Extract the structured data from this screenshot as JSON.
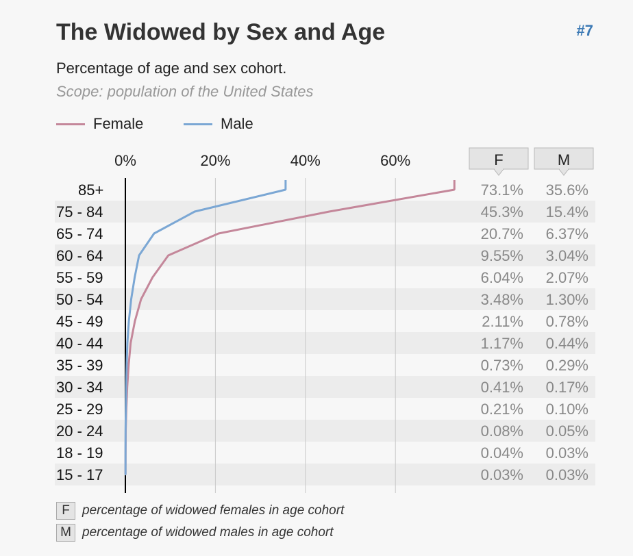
{
  "header": {
    "title": "The Widowed by Sex and Age",
    "chart_number": "#7",
    "subtitle": "Percentage of age and sex cohort.",
    "scope": "Scope: population of the United States"
  },
  "colors": {
    "female": "#c4879a",
    "male": "#7ba7d4",
    "accent": "#3d7ab5",
    "stripe": "#ececec",
    "grid": "#c8c8c8",
    "value_text": "#888888"
  },
  "legend": {
    "female_label": "Female",
    "male_label": "Male"
  },
  "column_headers": {
    "female": "F",
    "male": "M"
  },
  "footnotes": {
    "female_key": "F",
    "female_text": "percentage of widowed females in age cohort",
    "male_key": "M",
    "male_text": "percentage of widowed males in age cohort"
  },
  "chart_data": {
    "type": "line",
    "orientation": "horizontal",
    "title": "The Widowed by Sex and Age",
    "subtitle": "Percentage of age and sex cohort.",
    "x_ticks": [
      "0%",
      "20%",
      "40%",
      "60%"
    ],
    "x_tick_values": [
      0,
      20,
      40,
      60
    ],
    "xlim": [
      0,
      75
    ],
    "grid": true,
    "legend_position": "top-left",
    "categories": [
      "85+",
      "75 - 84",
      "65 - 74",
      "60 - 64",
      "55 - 59",
      "50 - 54",
      "45 - 49",
      "40 - 44",
      "35 - 39",
      "30 - 34",
      "25 - 29",
      "20 - 24",
      "18 - 19",
      "15 - 17"
    ],
    "series": [
      {
        "name": "Female",
        "values": [
          73.1,
          45.3,
          20.7,
          9.55,
          6.04,
          3.48,
          2.11,
          1.17,
          0.73,
          0.41,
          0.21,
          0.08,
          0.04,
          0.03
        ],
        "labels": [
          "73.1%",
          "45.3%",
          "20.7%",
          "9.55%",
          "6.04%",
          "3.48%",
          "2.11%",
          "1.17%",
          "0.73%",
          "0.41%",
          "0.21%",
          "0.08%",
          "0.04%",
          "0.03%"
        ]
      },
      {
        "name": "Male",
        "values": [
          35.6,
          15.4,
          6.37,
          3.04,
          2.07,
          1.3,
          0.78,
          0.44,
          0.29,
          0.17,
          0.1,
          0.05,
          0.03,
          0.03
        ],
        "labels": [
          "35.6%",
          "15.4%",
          "6.37%",
          "3.04%",
          "2.07%",
          "1.30%",
          "0.78%",
          "0.44%",
          "0.29%",
          "0.17%",
          "0.10%",
          "0.05%",
          "0.03%",
          "0.03%"
        ]
      }
    ]
  }
}
